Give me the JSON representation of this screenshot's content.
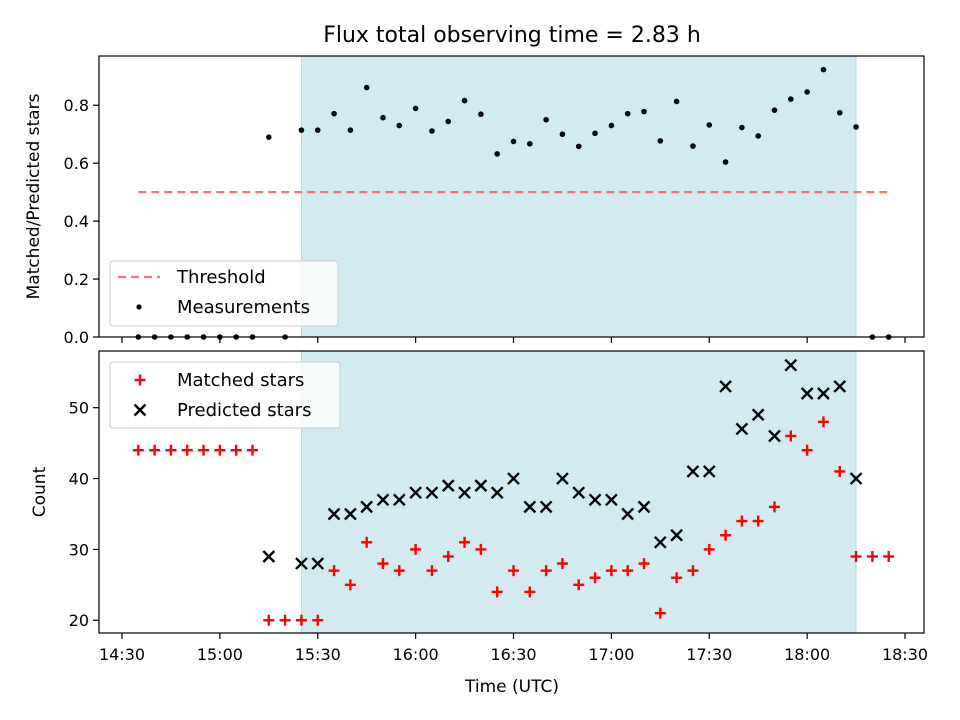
{
  "title": "Flux total observing time = 2.83 h",
  "colors": {
    "band": "#d2eaf0",
    "band_edge": "#b4dbe3",
    "threshold": "#f47373",
    "measurement": "#000000",
    "matched": "#ff0000",
    "predicted": "#000000"
  },
  "x_ticks": [
    "14:30",
    "15:00",
    "15:30",
    "16:00",
    "16:30",
    "17:00",
    "17:30",
    "18:00",
    "18:30"
  ],
  "chart_data": [
    {
      "type": "scatter",
      "ylabel": "Matched/Predicted stars",
      "xlabel": "",
      "ylim": [
        0.0,
        0.97
      ],
      "y_ticks": [
        "0.0",
        "0.2",
        "0.4",
        "0.6",
        "0.8"
      ],
      "band": {
        "start": "15:25",
        "end": "18:15"
      },
      "threshold": {
        "name": "Threshold",
        "value": 0.5,
        "x_start": "14:35",
        "x_end": "18:25"
      },
      "legend": {
        "loc": "lower left",
        "entries": [
          "Threshold",
          "Measurements"
        ]
      },
      "series": [
        {
          "name": "Measurements",
          "marker": "dot",
          "x": [
            "14:35",
            "14:40",
            "14:45",
            "14:50",
            "14:55",
            "15:00",
            "15:05",
            "15:10",
            "15:15",
            "15:20",
            "15:25",
            "15:30",
            "15:35",
            "15:40",
            "15:45",
            "15:50",
            "15:55",
            "16:00",
            "16:05",
            "16:10",
            "16:15",
            "16:20",
            "16:25",
            "16:30",
            "16:35",
            "16:40",
            "16:45",
            "16:50",
            "16:55",
            "17:00",
            "17:05",
            "17:10",
            "17:15",
            "17:20",
            "17:25",
            "17:30",
            "17:35",
            "17:40",
            "17:45",
            "17:50",
            "17:55",
            "18:00",
            "18:05",
            "18:10",
            "18:15",
            "18:20",
            "18:25"
          ],
          "y": [
            0.0,
            0.0,
            0.0,
            0.0,
            0.0,
            0.0,
            0.0,
            0.0,
            0.69,
            0.0,
            0.714,
            0.714,
            0.771,
            0.714,
            0.861,
            0.757,
            0.73,
            0.789,
            0.711,
            0.744,
            0.816,
            0.769,
            0.632,
            0.675,
            0.667,
            0.75,
            0.7,
            0.658,
            0.703,
            0.73,
            0.771,
            0.778,
            0.677,
            0.813,
            0.659,
            0.732,
            0.604,
            0.723,
            0.694,
            0.783,
            0.821,
            0.846,
            0.923,
            0.774,
            0.725,
            0.0,
            0.0
          ]
        }
      ]
    },
    {
      "type": "scatter",
      "ylabel": "Count",
      "xlabel": "Time (UTC)",
      "ylim": [
        18.2,
        58
      ],
      "y_ticks": [
        "20",
        "30",
        "40",
        "50"
      ],
      "band": {
        "start": "15:25",
        "end": "18:15"
      },
      "legend": {
        "loc": "upper left",
        "entries": [
          "Matched stars",
          "Predicted stars"
        ]
      },
      "series": [
        {
          "name": "Matched stars",
          "marker": "plus",
          "x": [
            "14:35",
            "14:40",
            "14:45",
            "14:50",
            "14:55",
            "15:00",
            "15:05",
            "15:10",
            "15:15",
            "15:20",
            "15:25",
            "15:30",
            "15:35",
            "15:40",
            "15:45",
            "15:50",
            "15:55",
            "16:00",
            "16:05",
            "16:10",
            "16:15",
            "16:20",
            "16:25",
            "16:30",
            "16:35",
            "16:40",
            "16:45",
            "16:50",
            "16:55",
            "17:00",
            "17:05",
            "17:10",
            "17:15",
            "17:20",
            "17:25",
            "17:30",
            "17:35",
            "17:40",
            "17:45",
            "17:50",
            "17:55",
            "18:00",
            "18:05",
            "18:10",
            "18:15",
            "18:20",
            "18:25"
          ],
          "y": [
            44,
            44,
            44,
            44,
            44,
            44,
            44,
            44,
            20,
            20,
            20,
            20,
            27,
            25,
            31,
            28,
            27,
            30,
            27,
            29,
            31,
            30,
            24,
            27,
            24,
            27,
            28,
            25,
            26,
            27,
            27,
            28,
            21,
            26,
            27,
            30,
            32,
            34,
            34,
            36,
            46,
            44,
            48,
            41,
            29,
            29,
            29
          ]
        },
        {
          "name": "Predicted stars",
          "marker": "x",
          "x": [
            "15:15",
            "15:25",
            "15:30",
            "15:35",
            "15:40",
            "15:45",
            "15:50",
            "15:55",
            "16:00",
            "16:05",
            "16:10",
            "16:15",
            "16:20",
            "16:25",
            "16:30",
            "16:35",
            "16:40",
            "16:45",
            "16:50",
            "16:55",
            "17:00",
            "17:05",
            "17:10",
            "17:15",
            "17:20",
            "17:25",
            "17:30",
            "17:35",
            "17:40",
            "17:45",
            "17:50",
            "17:55",
            "18:00",
            "18:05",
            "18:10",
            "18:15"
          ],
          "y": [
            29,
            28,
            28,
            35,
            35,
            36,
            37,
            37,
            38,
            38,
            39,
            38,
            39,
            38,
            40,
            36,
            36,
            40,
            38,
            37,
            37,
            35,
            36,
            31,
            32,
            41,
            41,
            53,
            47,
            49,
            46,
            56,
            52,
            52,
            53,
            40
          ]
        }
      ]
    }
  ]
}
